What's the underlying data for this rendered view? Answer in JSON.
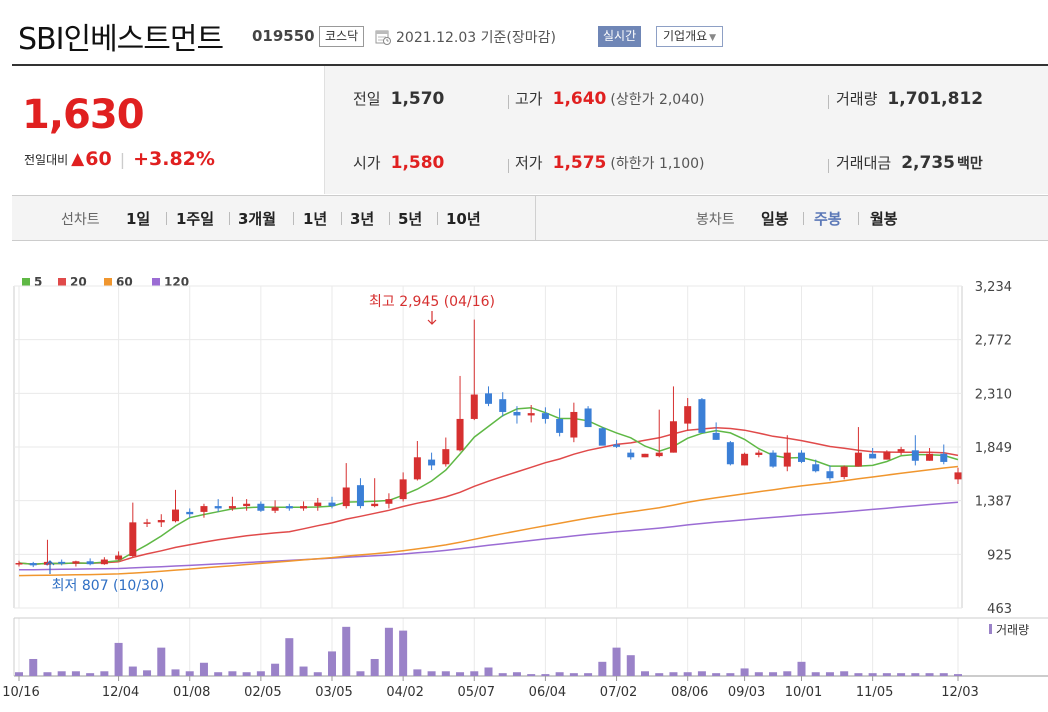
{
  "header": {
    "company_name": "SBI인베스트먼트",
    "stock_code": "019550",
    "market_badge": "코스닥",
    "base_date": "2021.12.03 기준(장마감)",
    "realtime_label": "실시간",
    "overview_label": "기업개요"
  },
  "price": {
    "current": "1,630",
    "change_label": "전일대비",
    "change_value": "60",
    "change_pct": "+3.82%",
    "color_up": "#e02020"
  },
  "stats": {
    "prev_close": {
      "label": "전일",
      "value": "1,570"
    },
    "high": {
      "label": "고가",
      "value": "1,640",
      "sub": "(상한가 2,040)"
    },
    "volume": {
      "label": "거래량",
      "value": "1,701,812"
    },
    "open": {
      "label": "시가",
      "value": "1,580"
    },
    "low": {
      "label": "저가",
      "value": "1,575",
      "sub": "(하한가 1,100)"
    },
    "trade_value": {
      "label": "거래대금",
      "value": "2,735",
      "unit": "백만"
    }
  },
  "period_bar": {
    "line_chart_label": "선차트",
    "line_periods": [
      "1일",
      "1주일",
      "3개월",
      "1년",
      "3년",
      "5년",
      "10년"
    ],
    "candle_chart_label": "봉차트",
    "candle_periods": [
      "일봉",
      "주봉",
      "월봉"
    ],
    "active_candle": "주봉"
  },
  "chart_data": {
    "type": "candlestick",
    "y_ticks": [
      "3,234",
      "2,772",
      "2,310",
      "1,849",
      "1,387",
      "925",
      "463"
    ],
    "y_range": [
      463,
      3234
    ],
    "x_labels": [
      "10/16",
      "12/04",
      "01/08",
      "02/05",
      "03/05",
      "04/02",
      "05/07",
      "06/04",
      "07/02",
      "08/06",
      "09/03",
      "10/01",
      "11/05",
      "12/03"
    ],
    "legend": [
      {
        "name": "5",
        "color": "#5fb845"
      },
      {
        "name": "20",
        "color": "#e04a4a"
      },
      {
        "name": "60",
        "color": "#f0962e"
      },
      {
        "name": "120",
        "color": "#9b6cd4"
      }
    ],
    "annotation_high": "최고 2,945 (04/16)",
    "annotation_low": "최저 807 (10/30)",
    "volume_label": "거래량",
    "candles": [
      [
        840,
        870,
        820,
        850
      ],
      [
        850,
        860,
        815,
        830
      ],
      [
        835,
        1050,
        830,
        860
      ],
      [
        860,
        880,
        830,
        845
      ],
      [
        845,
        870,
        820,
        865
      ],
      [
        865,
        890,
        830,
        840
      ],
      [
        840,
        900,
        835,
        880
      ],
      [
        880,
        950,
        870,
        915
      ],
      [
        910,
        1370,
        900,
        1200
      ],
      [
        1200,
        1230,
        1160,
        1200
      ],
      [
        1200,
        1270,
        1160,
        1220
      ],
      [
        1210,
        1480,
        1200,
        1310
      ],
      [
        1290,
        1320,
        1240,
        1270
      ],
      [
        1290,
        1360,
        1240,
        1340
      ],
      [
        1340,
        1400,
        1290,
        1320
      ],
      [
        1320,
        1420,
        1300,
        1340
      ],
      [
        1340,
        1400,
        1300,
        1360
      ],
      [
        1360,
        1380,
        1290,
        1300
      ],
      [
        1300,
        1390,
        1280,
        1330
      ],
      [
        1340,
        1360,
        1300,
        1320
      ],
      [
        1320,
        1380,
        1300,
        1340
      ],
      [
        1340,
        1410,
        1300,
        1370
      ],
      [
        1370,
        1420,
        1320,
        1340
      ],
      [
        1340,
        1710,
        1320,
        1500
      ],
      [
        1520,
        1580,
        1320,
        1340
      ],
      [
        1340,
        1580,
        1330,
        1360
      ],
      [
        1360,
        1450,
        1320,
        1400
      ],
      [
        1400,
        1630,
        1380,
        1570
      ],
      [
        1570,
        1900,
        1560,
        1760
      ],
      [
        1740,
        1800,
        1650,
        1690
      ],
      [
        1700,
        1930,
        1680,
        1830
      ],
      [
        1820,
        2460,
        1810,
        2090
      ],
      [
        2090,
        2945,
        2080,
        2300
      ],
      [
        2310,
        2370,
        2200,
        2220
      ],
      [
        2260,
        2320,
        2110,
        2150
      ],
      [
        2150,
        2200,
        2050,
        2120
      ],
      [
        2120,
        2210,
        2060,
        2140
      ],
      [
        2140,
        2190,
        2050,
        2090
      ],
      [
        2090,
        2180,
        1940,
        1970
      ],
      [
        1930,
        2230,
        1890,
        2150
      ],
      [
        2180,
        2200,
        2020,
        2020
      ],
      [
        2010,
        2020,
        1870,
        1860
      ],
      [
        1870,
        1910,
        1840,
        1850
      ],
      [
        1800,
        1830,
        1740,
        1760
      ],
      [
        1760,
        1790,
        1760,
        1790
      ],
      [
        1770,
        2170,
        1760,
        1800
      ],
      [
        1800,
        2370,
        1800,
        2070
      ],
      [
        2050,
        2270,
        1990,
        2200
      ],
      [
        2260,
        2270,
        1980,
        1970
      ],
      [
        1970,
        2060,
        1910,
        1910
      ],
      [
        1890,
        1900,
        1690,
        1700
      ],
      [
        1690,
        1800,
        1690,
        1790
      ],
      [
        1780,
        1820,
        1760,
        1800
      ],
      [
        1800,
        1820,
        1670,
        1680
      ],
      [
        1680,
        1950,
        1640,
        1800
      ],
      [
        1800,
        1820,
        1710,
        1720
      ],
      [
        1700,
        1740,
        1630,
        1640
      ],
      [
        1640,
        1690,
        1560,
        1580
      ],
      [
        1590,
        1690,
        1570,
        1680
      ],
      [
        1680,
        2020,
        1680,
        1800
      ],
      [
        1790,
        1840,
        1750,
        1750
      ],
      [
        1740,
        1820,
        1740,
        1810
      ],
      [
        1810,
        1850,
        1780,
        1830
      ],
      [
        1820,
        1950,
        1690,
        1730
      ],
      [
        1730,
        1840,
        1730,
        1790
      ],
      [
        1790,
        1870,
        1700,
        1720
      ],
      [
        1570,
        1670,
        1530,
        1630
      ]
    ],
    "volumes": [
      4,
      18,
      4,
      5,
      5,
      3,
      5,
      35,
      10,
      6,
      30,
      7,
      5,
      14,
      4,
      5,
      4,
      5,
      13,
      40,
      10,
      4,
      26,
      52,
      5,
      18,
      51,
      48,
      7,
      5,
      5,
      4,
      5,
      9,
      3,
      4,
      2,
      2,
      4,
      3,
      3,
      15,
      30,
      22,
      5,
      3,
      4,
      4,
      5,
      3,
      3,
      8,
      4,
      4,
      5,
      15,
      4,
      4,
      5,
      3,
      3,
      3,
      3,
      3,
      3,
      3,
      2
    ]
  }
}
